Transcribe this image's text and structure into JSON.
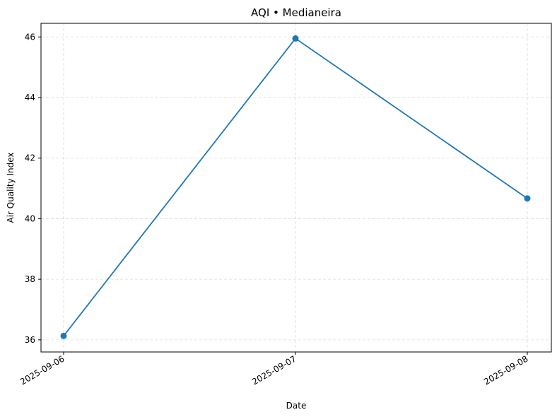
{
  "chart_data": {
    "type": "line",
    "title": "AQI • Medianeira",
    "xlabel": "Date",
    "ylabel": "Air Quality Index",
    "x": [
      "2025-09-06",
      "2025-09-07",
      "2025-09-08"
    ],
    "series": [
      {
        "values": [
          36.13,
          45.95,
          40.67
        ],
        "color": "#1f77b4",
        "marker": "circle"
      }
    ],
    "ylim": [
      35.6,
      46.45
    ],
    "yticks": [
      36,
      38,
      40,
      42,
      44,
      46
    ],
    "grid": true
  }
}
